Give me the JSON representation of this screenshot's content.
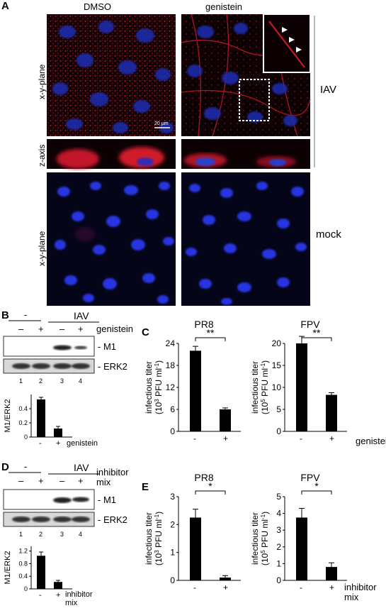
{
  "panel_a": {
    "letter": "A",
    "col_dmso": "DMSO",
    "col_genistein": "genistein",
    "row_xy": "x-y-plane",
    "row_z": "z-axis",
    "row_xy_mock": "x-y-plane",
    "group_iav": "IAV",
    "group_mock": "mock",
    "scalebar": "20 µm"
  },
  "panel_b": {
    "letter": "B",
    "minus_group": "-",
    "iav_group": "IAV",
    "treatment_label": "genistein",
    "lane_signs": [
      "–",
      "+",
      "–",
      "+"
    ],
    "band_m1": "- M1",
    "band_erk2": "- ERK2",
    "lane_numbers": [
      "1",
      "2",
      "3",
      "4"
    ],
    "ylabel": "M1/ERK2",
    "x_signs": [
      "-",
      "+"
    ],
    "x_treatment": "genistein",
    "yticks": [
      "0.4",
      "0.2",
      "0"
    ],
    "chart_data": {
      "type": "bar",
      "categories": [
        "-",
        "+"
      ],
      "values": [
        0.53,
        0.12
      ],
      "errors": [
        0.03,
        0.03
      ],
      "ylim": [
        0,
        0.6
      ],
      "ylabel": "M1/ERK2"
    }
  },
  "panel_c": {
    "letter": "C",
    "treatment_label": "genistein",
    "charts": [
      {
        "title": "PR8",
        "ylabel1": "infectious titer",
        "ylabel2": "(10",
        "ylabel_sup": "3",
        "ylabel3": " PFU ml",
        "ylabel_sup2": "-1",
        "ylabel4": ")",
        "yticks": [
          "24",
          "18",
          "12",
          "6",
          "0"
        ],
        "sig": "**",
        "x_signs": [
          "-",
          "+"
        ]
      },
      {
        "title": "FPV",
        "ylabel1": "infectious titer",
        "ylabel2": "(10",
        "ylabel_sup": "5",
        "ylabel3": " PFU ml",
        "ylabel_sup2": "-1",
        "ylabel4": ")",
        "yticks": [
          "20",
          "15",
          "10",
          "5",
          "0"
        ],
        "sig": "**",
        "x_signs": [
          "-",
          "+"
        ]
      }
    ],
    "chart_data": [
      {
        "type": "bar",
        "title": "PR8",
        "categories": [
          "-",
          "+"
        ],
        "values": [
          22,
          6
        ],
        "errors": [
          1.2,
          0.4
        ],
        "ylim": [
          0,
          24
        ]
      },
      {
        "type": "bar",
        "title": "FPV",
        "categories": [
          "-",
          "+"
        ],
        "values": [
          20,
          8.3
        ],
        "errors": [
          1.6,
          0.5
        ],
        "ylim": [
          0,
          20
        ]
      }
    ]
  },
  "panel_d": {
    "letter": "D",
    "minus_group": "-",
    "iav_group": "IAV",
    "treatment_label1": "inhibitor",
    "treatment_label2": "mix",
    "lane_signs": [
      "–",
      "+",
      "–",
      "+"
    ],
    "band_m1": "- M1",
    "band_erk2": "- ERK2",
    "lane_numbers": [
      "1",
      "2",
      "3",
      "4"
    ],
    "ylabel": "M1/ERK2",
    "x_signs": [
      "-",
      "+"
    ],
    "x_treatment1": "inhibitor",
    "x_treatment2": "mix",
    "yticks": [
      "1.2",
      "0.8",
      "0.4",
      "0"
    ],
    "chart_data": {
      "type": "bar",
      "categories": [
        "-",
        "+"
      ],
      "values": [
        1.05,
        0.22
      ],
      "errors": [
        0.12,
        0.05
      ],
      "ylim": [
        0,
        1.35
      ],
      "ylabel": "M1/ERK2"
    }
  },
  "panel_e": {
    "letter": "E",
    "treatment_label1": "inhibitor",
    "treatment_label2": "mix",
    "charts": [
      {
        "title": "PR8",
        "ylabel1": "infectious titer",
        "ylabel2": "(10",
        "ylabel_sup": "3",
        "ylabel3": " PFU ml",
        "ylabel_sup2": "-1",
        "ylabel4": ")",
        "yticks": [
          "3",
          "2",
          "1",
          "0"
        ],
        "sig": "*",
        "x_signs": [
          "-",
          "+"
        ]
      },
      {
        "title": "FPV",
        "ylabel1": "infectious titer",
        "ylabel2": "(10",
        "ylabel_sup": "5",
        "ylabel3": " PFU ml",
        "ylabel_sup2": "-1",
        "ylabel4": ")",
        "yticks": [
          "5",
          "4",
          "3",
          "2",
          "1",
          "0"
        ],
        "sig": "*",
        "x_signs": [
          "-",
          "+"
        ]
      }
    ],
    "chart_data": [
      {
        "type": "bar",
        "title": "PR8",
        "categories": [
          "-",
          "+"
        ],
        "values": [
          2.25,
          0.1
        ],
        "errors": [
          0.3,
          0.07
        ],
        "ylim": [
          0,
          3
        ]
      },
      {
        "type": "bar",
        "title": "FPV",
        "categories": [
          "-",
          "+"
        ],
        "values": [
          3.75,
          0.8
        ],
        "errors": [
          0.55,
          0.25
        ],
        "ylim": [
          0,
          5
        ]
      }
    ]
  }
}
